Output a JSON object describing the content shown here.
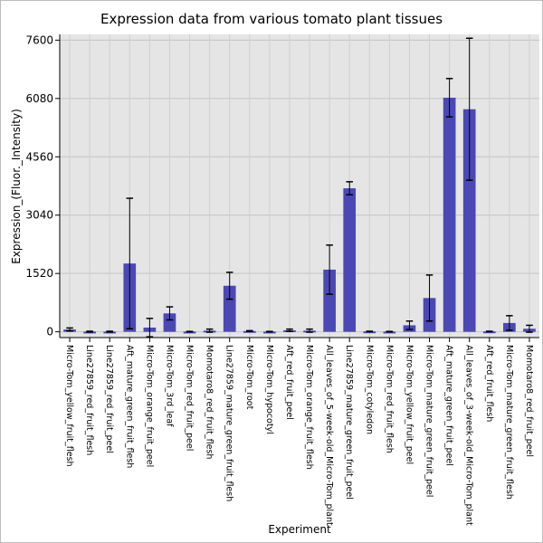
{
  "chart_data": {
    "type": "bar",
    "title": "Expression data from various tomato plant tissues",
    "xlabel": "Experiment",
    "ylabel": "Expression_(Fluor._Intensity)",
    "yticks": [
      0,
      1520,
      3040,
      4560,
      6080,
      7600
    ],
    "ylim": [
      -150,
      7750
    ],
    "grid": true,
    "bar_color": "#4b48b5",
    "plot_bg": "#e5e5e5",
    "categories": [
      "Micro-Tom_yellow_fruit_flesh",
      "Line27859_red_fruit_flesh",
      "Line27859_red_fruit_peel",
      "Aft_mature_green_fruit_flesh",
      "Micro-Tom_orange_fruit_peel",
      "Micro-Tom_3rd_leaf",
      "Micro-Tom_red_fruit_peel",
      "Momotaro8_red_fruit_flesh",
      "Line27859_mature_green_fruit_flesh",
      "Micro-Tom_root",
      "Micro-Tom_hypocotyl",
      "Aft_red_fruit_peel",
      "Micro-Tom_orange_fruit_flesh",
      "All_leaves_of_5-week-old_Micro-Tom_plant",
      "Line27859_mature_green_fruit_peel",
      "Micro-Tom_cotyledon",
      "Micro-Tom_red_fruit_flesh",
      "Micro-Tom_yellow_fruit_peel",
      "Micro-Tom_mature_green_fruit_peel",
      "Aft_mature_green_fruit_peel",
      "All_leaves_of_3-week-old_Micro-Tom_plant",
      "Aft_red_fruit_flesh",
      "Micro-Tom_mature_green_fruit_flesh",
      "Momotaro8_red_fruit_peel"
    ],
    "values": [
      60,
      5,
      5,
      1780,
      110,
      480,
      5,
      30,
      1200,
      20,
      5,
      40,
      30,
      1620,
      3740,
      10,
      5,
      170,
      880,
      6100,
      5800,
      10,
      230,
      80
    ],
    "errors": [
      40,
      10,
      10,
      1700,
      240,
      170,
      5,
      40,
      350,
      10,
      5,
      30,
      40,
      640,
      170,
      5,
      5,
      110,
      600,
      500,
      1850,
      5,
      190,
      90
    ]
  }
}
